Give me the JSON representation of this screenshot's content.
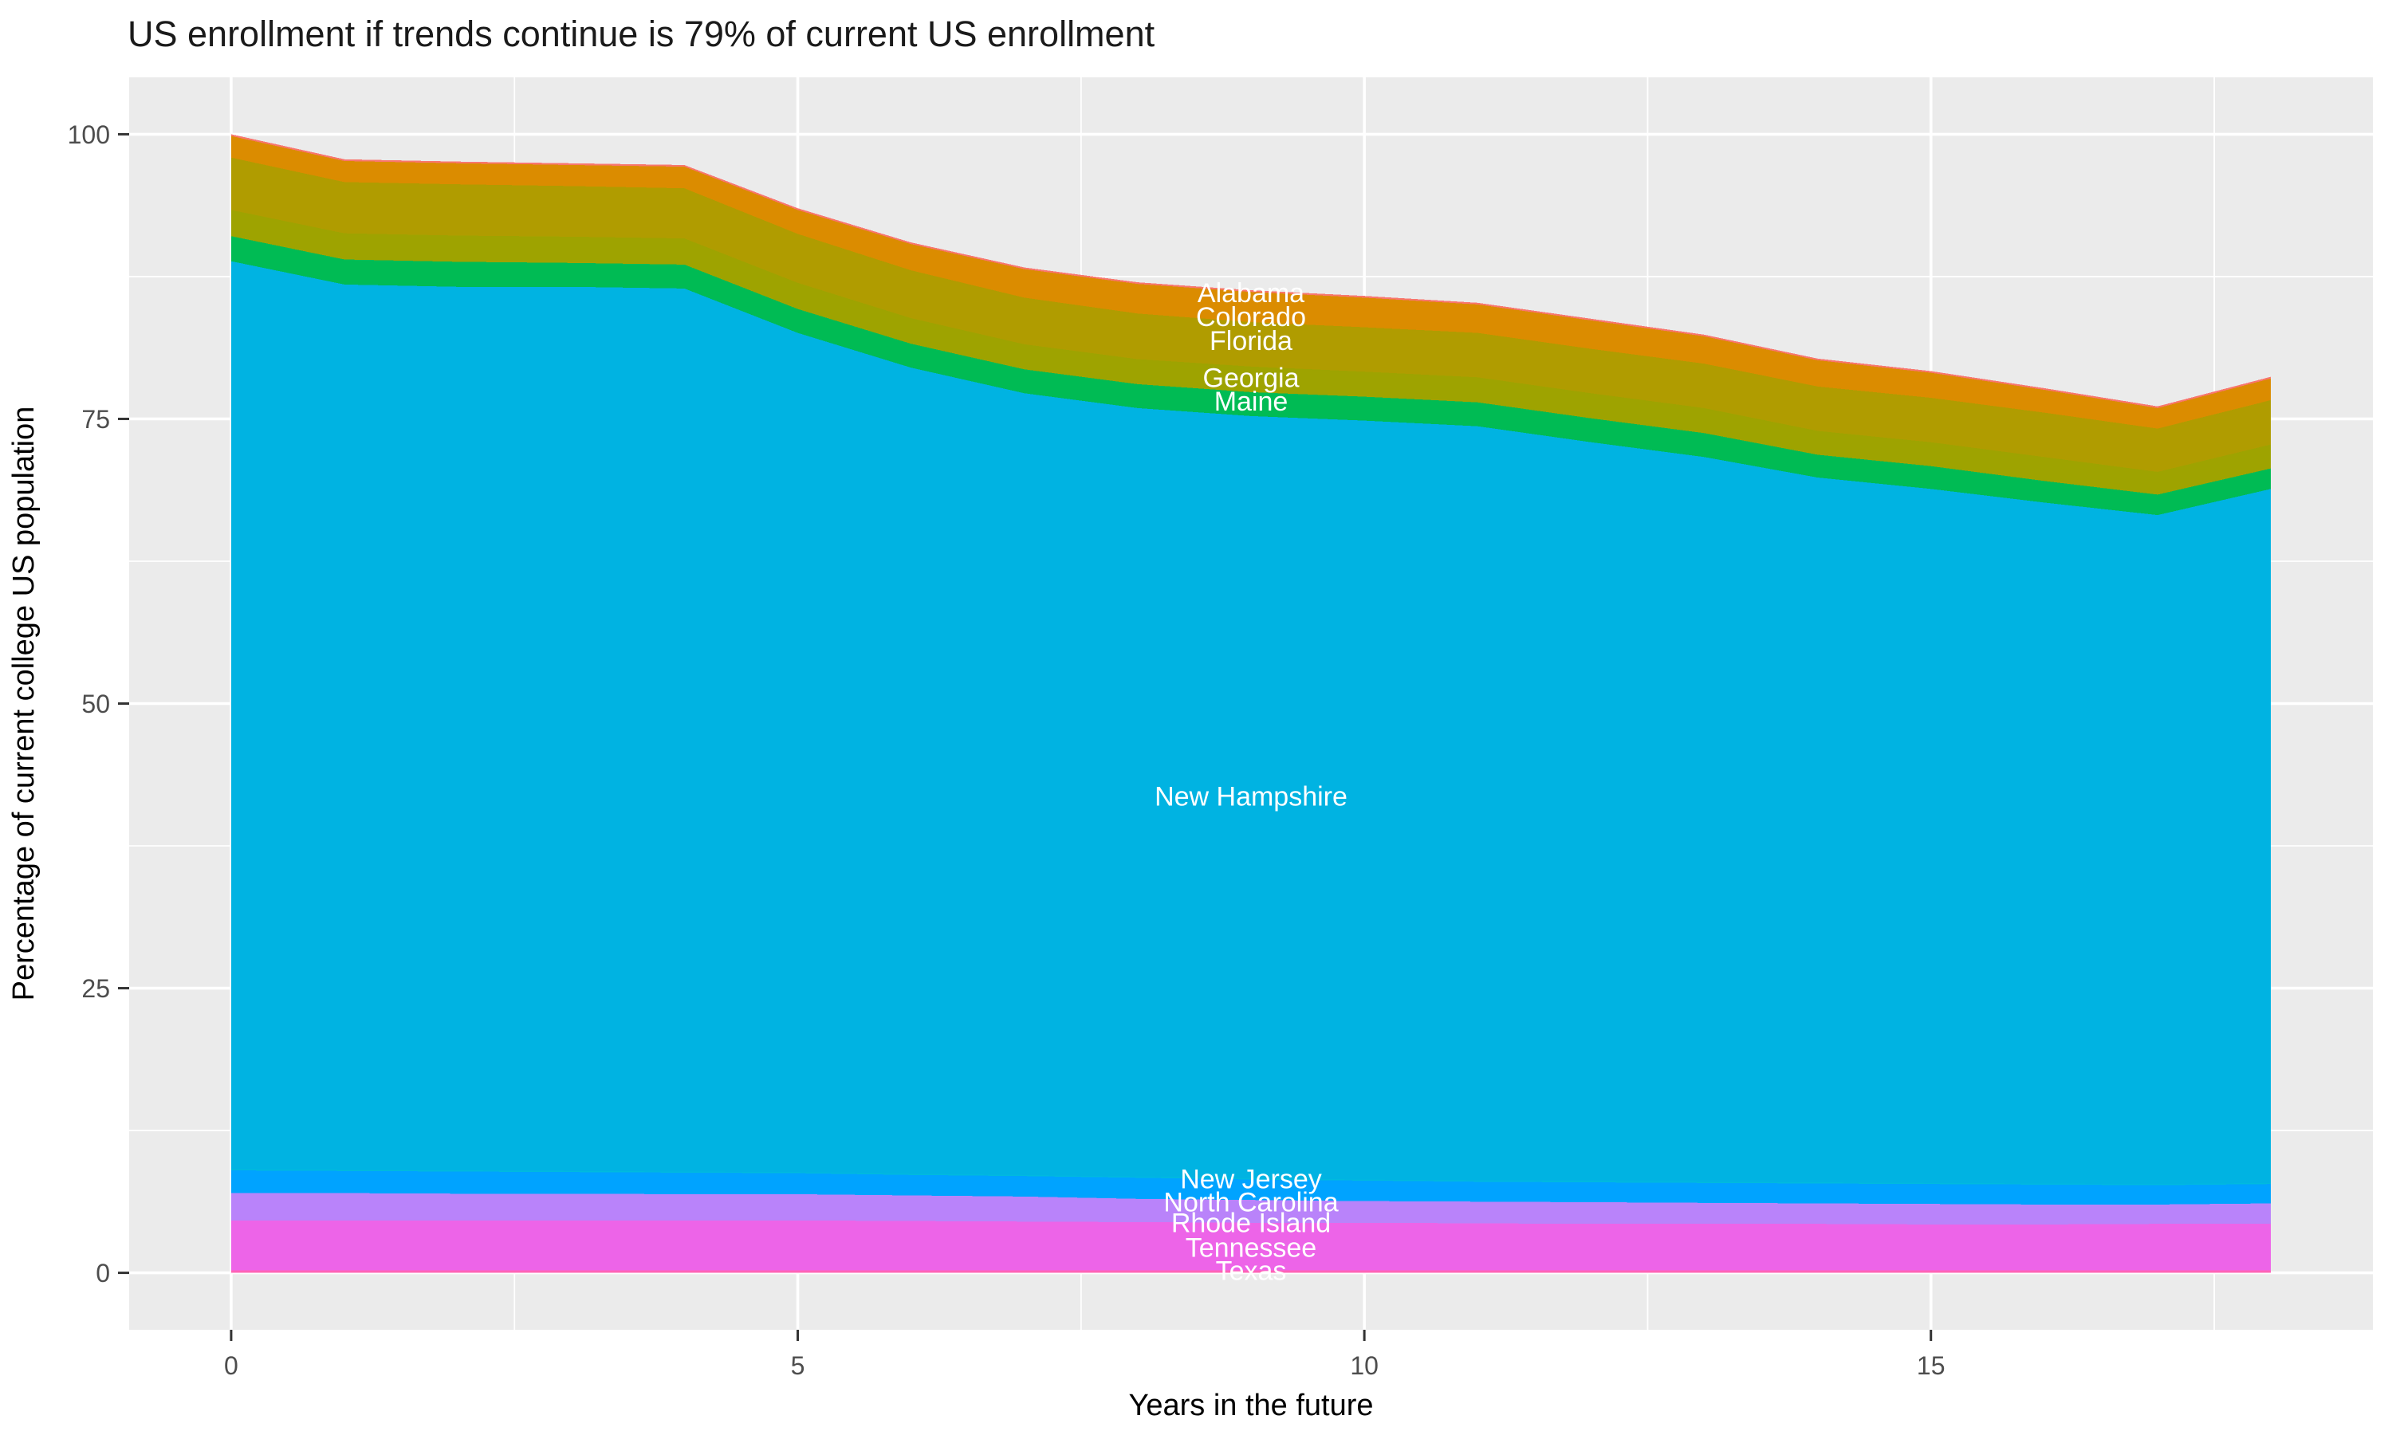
{
  "title": "US enrollment if trends continue is 79% of current US enrollment",
  "x_axis": {
    "label": "Years in the future",
    "ticks": [
      0,
      5,
      10,
      15
    ],
    "domain": [
      0,
      18
    ],
    "minor_ticks": [
      2.5,
      7.5,
      12.5,
      17.5
    ]
  },
  "y_axis": {
    "label": "Percentage of current college US population",
    "ticks": [
      0,
      25,
      50,
      75,
      100
    ],
    "domain": [
      0,
      100
    ],
    "minor_ticks": [
      12.5,
      37.5,
      62.5,
      87.5
    ]
  },
  "style": {
    "panel_bg": "#EBEBEB",
    "grid_color": "#FFFFFF",
    "tick_color": "#333333",
    "tick_label_color": "#4D4D4D",
    "title_color": "#1A1A1A",
    "label_text_color": "#FFFFFF"
  },
  "chart_data": {
    "type": "area",
    "stacked": true,
    "legend_position": "none",
    "grid": true,
    "x": [
      0,
      1,
      2,
      3,
      4,
      5,
      6,
      7,
      8,
      9,
      10,
      11,
      12,
      13,
      14,
      15,
      16,
      17,
      18
    ],
    "series": [
      {
        "name": "Alabama",
        "color": "#F8766D",
        "values": [
          0.15,
          0.15,
          0.15,
          0.15,
          0.15,
          0.15,
          0.15,
          0.15,
          0.15,
          0.15,
          0.15,
          0.15,
          0.15,
          0.15,
          0.15,
          0.15,
          0.15,
          0.15,
          0.15
        ]
      },
      {
        "name": "Colorado",
        "color": "#DB8C00",
        "values": [
          1.9,
          1.85,
          1.85,
          1.85,
          1.9,
          2.1,
          2.3,
          2.5,
          2.6,
          2.65,
          2.6,
          2.5,
          2.5,
          2.4,
          2.3,
          2.2,
          2.0,
          1.8,
          1.9
        ]
      },
      {
        "name": "Florida",
        "color": "#B09C00",
        "values": [
          4.6,
          4.5,
          4.5,
          4.45,
          4.4,
          4.3,
          4.2,
          4.1,
          4.0,
          3.9,
          3.9,
          3.9,
          3.9,
          3.9,
          3.9,
          3.9,
          3.9,
          3.8,
          3.9
        ]
      },
      {
        "name": "Georgia",
        "color": "#9EA300",
        "values": [
          2.3,
          2.3,
          2.3,
          2.3,
          2.3,
          2.3,
          2.25,
          2.2,
          2.2,
          2.25,
          2.2,
          2.2,
          2.2,
          2.2,
          2.1,
          2.1,
          2.1,
          2.0,
          2.1
        ]
      },
      {
        "name": "Maine",
        "color": "#00BB54",
        "values": [
          2.2,
          2.2,
          2.2,
          2.1,
          2.1,
          2.1,
          2.1,
          2.1,
          2.1,
          2.1,
          2.1,
          2.1,
          2.1,
          2.1,
          2.0,
          2.0,
          1.9,
          1.8,
          1.8
        ]
      },
      {
        "name": "New Hampshire",
        "color": "#00B3E2",
        "values": [
          79.75,
          77.75,
          77.6,
          77.65,
          77.55,
          73.7,
          70.8,
          68.65,
          67.5,
          66.95,
          66.65,
          66.25,
          64.9,
          63.65,
          61.9,
          60.95,
          59.8,
          58.75,
          60.95
        ]
      },
      {
        "name": "New Jersey",
        "color": "#00BADE",
        "values": [
          0.1,
          0.1,
          0.1,
          0.1,
          0.1,
          0.1,
          0.1,
          0.1,
          0.1,
          0.1,
          0.1,
          0.1,
          0.1,
          0.1,
          0.1,
          0.1,
          0.1,
          0.1,
          0.1
        ]
      },
      {
        "name": "North Carolina",
        "color": "#00A3FF",
        "values": [
          2.0,
          1.95,
          1.95,
          1.9,
          1.9,
          1.85,
          1.8,
          1.8,
          1.85,
          1.8,
          1.8,
          1.75,
          1.75,
          1.75,
          1.75,
          1.75,
          1.75,
          1.7,
          1.7
        ]
      },
      {
        "name": "Rhode Island",
        "color": "#B983FA",
        "values": [
          2.4,
          2.4,
          2.35,
          2.35,
          2.3,
          2.3,
          2.25,
          2.2,
          2.05,
          2.0,
          1.9,
          1.9,
          1.9,
          1.85,
          1.8,
          1.8,
          1.75,
          1.7,
          1.8
        ]
      },
      {
        "name": "Tennessee",
        "color": "#ED64E8",
        "values": [
          4.4,
          4.4,
          4.4,
          4.4,
          4.4,
          4.4,
          4.35,
          4.3,
          4.25,
          4.2,
          4.2,
          4.15,
          4.1,
          4.1,
          4.1,
          4.05,
          4.05,
          4.1,
          4.1
        ]
      },
      {
        "name": "Texas",
        "color": "#FF63B6",
        "values": [
          0.2,
          0.2,
          0.2,
          0.2,
          0.2,
          0.2,
          0.2,
          0.2,
          0.2,
          0.2,
          0.2,
          0.2,
          0.2,
          0.2,
          0.2,
          0.2,
          0.2,
          0.2,
          0.2
        ]
      }
    ],
    "labels": [
      {
        "text": "Alabama",
        "x": 9,
        "y": 86.1
      },
      {
        "text": "Colorado",
        "x": 9,
        "y": 84.0
      },
      {
        "text": "Florida",
        "x": 9,
        "y": 81.9
      },
      {
        "text": "Georgia",
        "x": 9,
        "y": 78.65
      },
      {
        "text": "Maine",
        "x": 9,
        "y": 76.6
      },
      {
        "text": "New Hampshire",
        "x": 9,
        "y": 41.9
      },
      {
        "text": "New Jersey",
        "x": 9,
        "y": 8.3
      },
      {
        "text": "North Carolina",
        "x": 9,
        "y": 6.27
      },
      {
        "text": "Rhode Island",
        "x": 9,
        "y": 4.45
      },
      {
        "text": "Tennessee",
        "x": 9,
        "y": 2.28
      },
      {
        "text": "Texas",
        "x": 9,
        "y": 0.25
      }
    ]
  }
}
